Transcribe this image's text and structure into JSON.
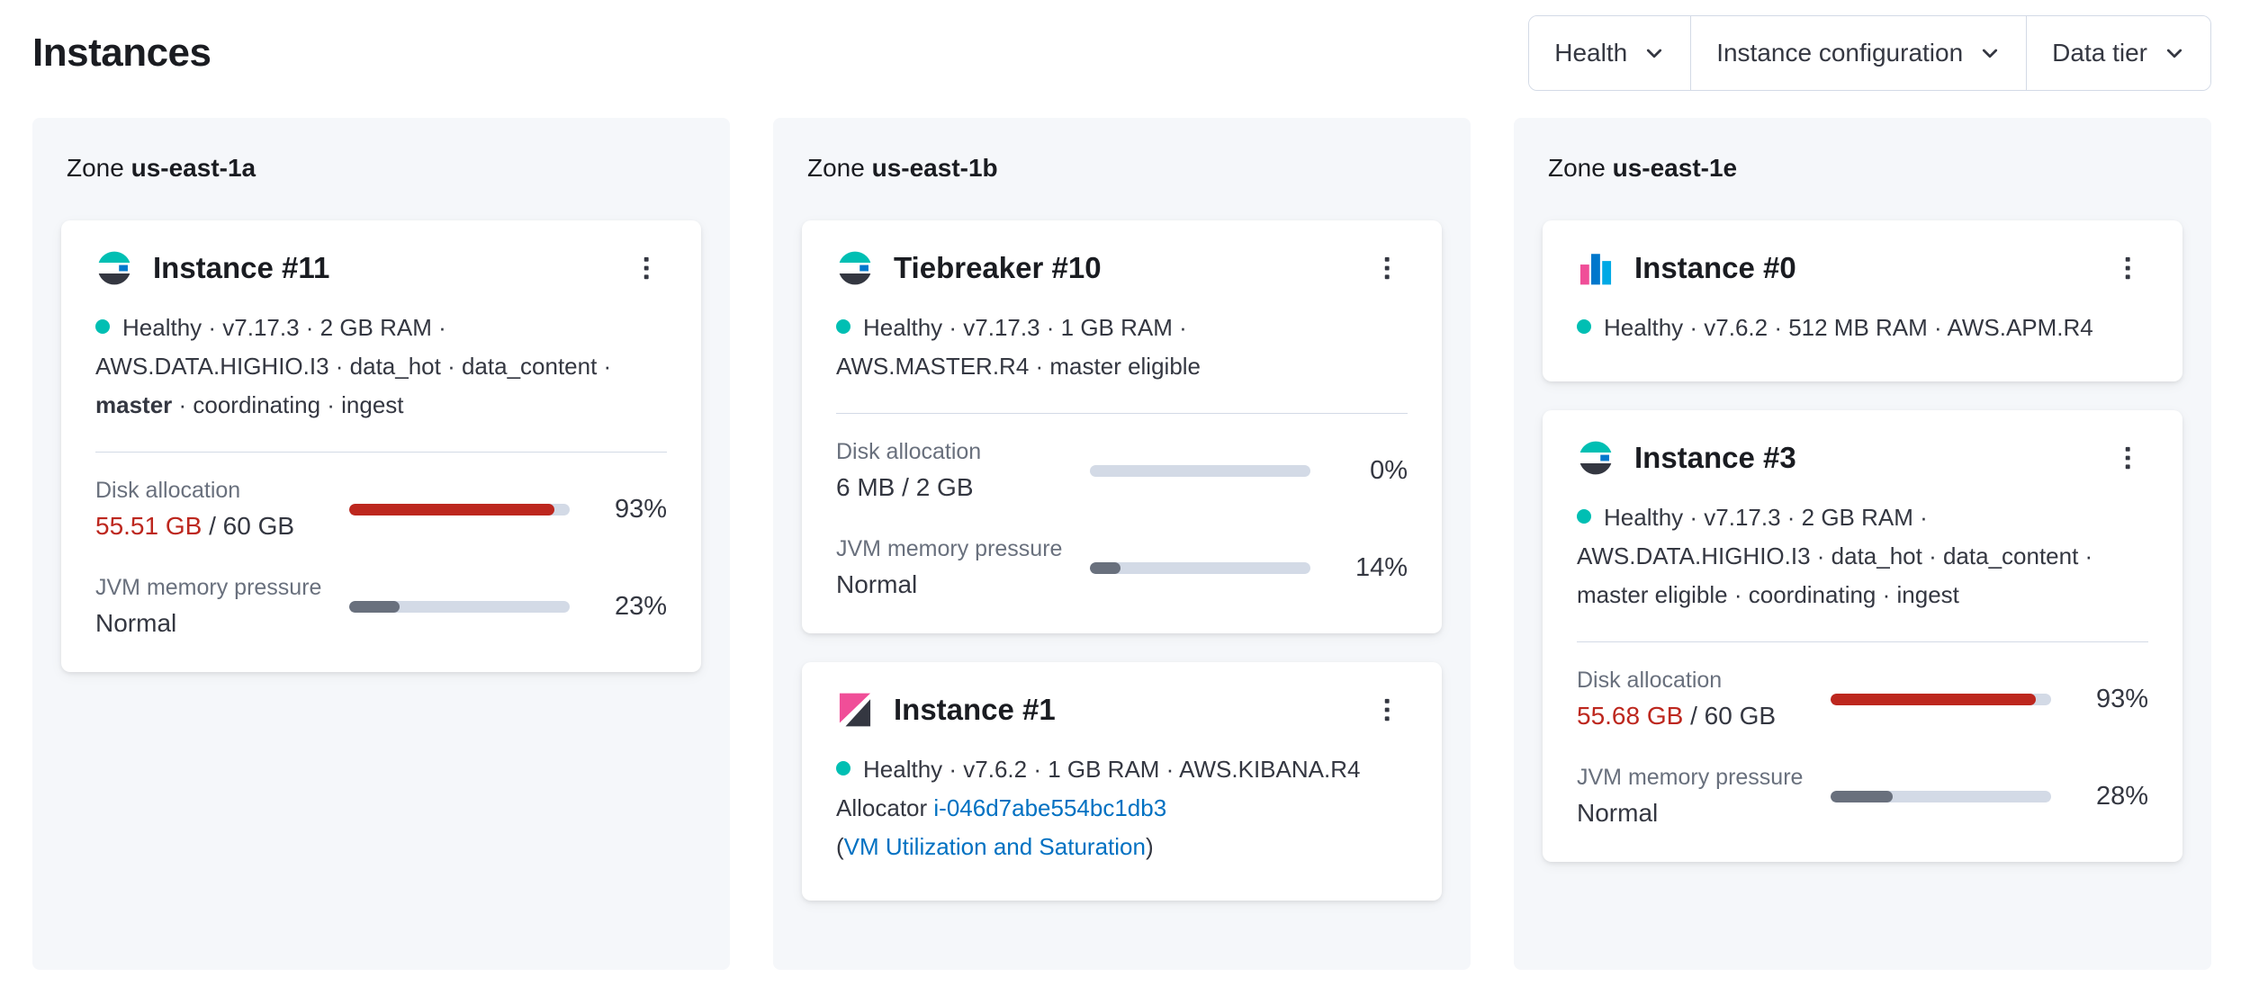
{
  "page": {
    "title": "Instances"
  },
  "filters": [
    {
      "label": "Health"
    },
    {
      "label": "Instance configuration"
    },
    {
      "label": "Data tier"
    }
  ],
  "colors": {
    "danger": "#BD271E",
    "healthy_dot": "#00BFB3",
    "link": "#0071C2",
    "bar_track": "#D3DAE6",
    "bar_neutral": "#69707D"
  },
  "zones": [
    {
      "label": "Zone",
      "name": "us-east-1a",
      "cards": [
        {
          "icon": "elasticsearch-logo",
          "title": "Instance #11",
          "meta": [
            {
              "pre": "Healthy · v7.17.3 · 2 GB RAM ·"
            },
            {
              "pre": "AWS.DATA.HIGHIO.I3 · data_hot · data_content ·"
            },
            {
              "bold": "master",
              "post": " · coordinating · ingest"
            }
          ],
          "disk": {
            "label": "Disk allocation",
            "used": "55.51 GB",
            "total": " / 60 GB",
            "pct_label": "93%",
            "bar": {
              "pct": 93,
              "color": "#BD271E"
            }
          },
          "jvm": {
            "label": "JVM memory pressure",
            "value": "Normal",
            "pct_label": "23%",
            "bar": {
              "pct": 23,
              "color": "#69707D"
            }
          }
        }
      ]
    },
    {
      "label": "Zone",
      "name": "us-east-1b",
      "cards": [
        {
          "icon": "elasticsearch-logo",
          "title": "Tiebreaker #10",
          "meta": [
            {
              "pre": "Healthy · v7.17.3 · 1 GB RAM ·"
            },
            {
              "pre": "AWS.MASTER.R4 · master eligible"
            }
          ],
          "disk": {
            "label": "Disk allocation",
            "value": "6 MB / 2 GB",
            "pct_label": "0%",
            "bar": {
              "pct": 0,
              "color": "#69707D"
            }
          },
          "jvm": {
            "label": "JVM memory pressure",
            "value": "Normal",
            "pct_label": "14%",
            "bar": {
              "pct": 14,
              "color": "#69707D"
            }
          }
        },
        {
          "icon": "kibana-logo",
          "title": "Instance #1",
          "meta": [
            {
              "pre": "Healthy · v7.6.2 · 1 GB RAM · AWS.KIBANA.R4"
            }
          ],
          "allocator": {
            "prefix": "Allocator ",
            "link": "i-046d7abe554bc1db3"
          },
          "vm": {
            "open": "(",
            "link": "VM Utilization and Saturation",
            "close": ")"
          }
        }
      ]
    },
    {
      "label": "Zone",
      "name": "us-east-1e",
      "cards": [
        {
          "icon": "apm-logo",
          "title": "Instance #0",
          "meta": [
            {
              "pre": "Healthy · v7.6.2 · 512 MB RAM · AWS.APM.R4"
            }
          ]
        },
        {
          "icon": "elasticsearch-logo",
          "title": "Instance #3",
          "meta": [
            {
              "pre": "Healthy · v7.17.3 · 2 GB RAM ·"
            },
            {
              "pre": "AWS.DATA.HIGHIO.I3 · data_hot · data_content ·"
            },
            {
              "pre": "master eligible · coordinating · ingest"
            }
          ],
          "disk": {
            "label": "Disk allocation",
            "used": "55.68 GB",
            "total": " / 60 GB",
            "pct_label": "93%",
            "bar": {
              "pct": 93,
              "color": "#BD271E"
            }
          },
          "jvm": {
            "label": "JVM memory pressure",
            "value": "Normal",
            "pct_label": "28%",
            "bar": {
              "pct": 28,
              "color": "#69707D"
            }
          }
        }
      ]
    }
  ]
}
